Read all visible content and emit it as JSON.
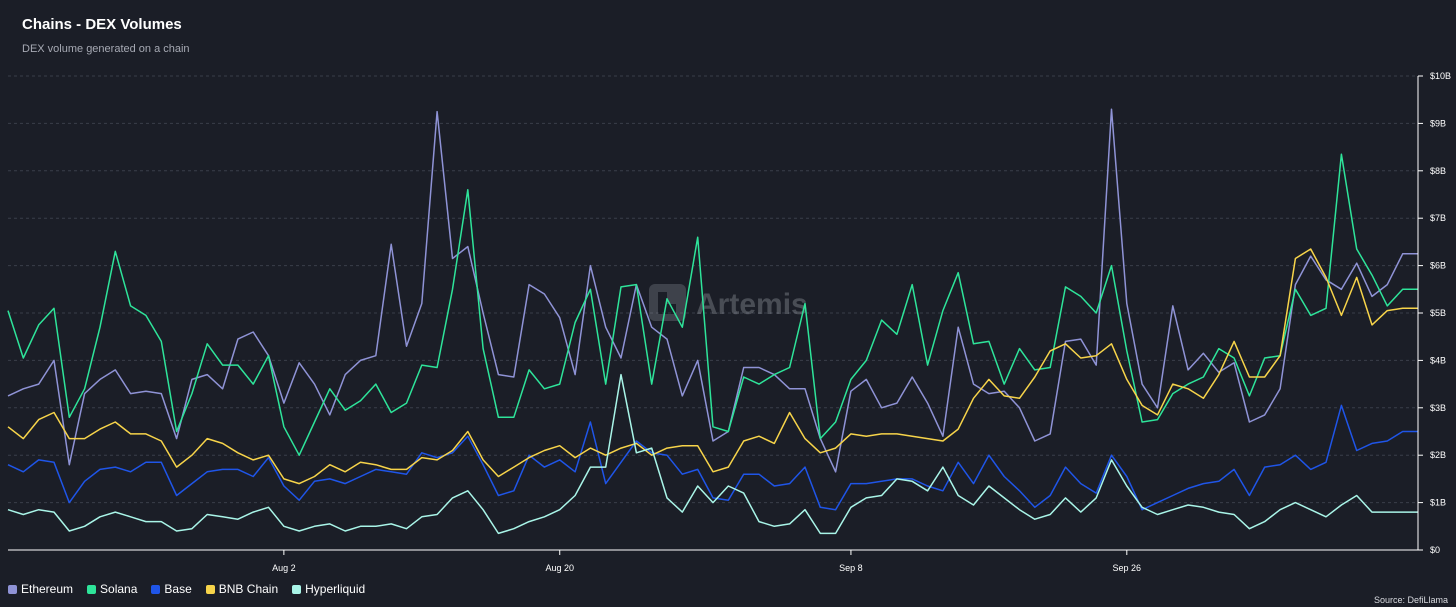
{
  "header": {
    "title": "Chains - DEX Volumes",
    "subtitle": "DEX volume generated on a chain"
  },
  "watermark": {
    "text": "Artemis"
  },
  "source": "Source: DefiLlama",
  "colors": {
    "Ethereum": "#8f93d6",
    "Solana": "#2ee49a",
    "Base": "#1f55e8",
    "BNB Chain": "#f7d44a",
    "Hyperliquid": "#a9f5e8",
    "grid": "#3a3e4a",
    "axis": "#ffffff"
  },
  "chart_data": {
    "type": "line",
    "title": "Chains - DEX Volumes",
    "subtitle": "DEX volume generated on a chain",
    "xlabel": "",
    "ylabel": "",
    "ylim": [
      0,
      10
    ],
    "y_unit": "B USD",
    "y_ticks": [
      0,
      1,
      2,
      3,
      4,
      5,
      6,
      7,
      8,
      9,
      10
    ],
    "y_tick_labels": [
      "$0",
      "$1B",
      "$2B",
      "$3B",
      "$4B",
      "$5B",
      "$6B",
      "$7B",
      "$8B",
      "$9B",
      "$10B"
    ],
    "x_start_date": "Jul 15",
    "x_ticks": [
      {
        "label": "Aug 2",
        "index": 18
      },
      {
        "label": "Aug 20",
        "index": 36
      },
      {
        "label": "Sep 8",
        "index": 55
      },
      {
        "label": "Sep 26",
        "index": 73
      }
    ],
    "legend_position": "bottom-left",
    "series": [
      {
        "name": "Ethereum",
        "values": [
          3.25,
          3.4,
          3.5,
          4.0,
          1.8,
          3.3,
          3.6,
          3.8,
          3.3,
          3.35,
          3.3,
          2.35,
          3.6,
          3.7,
          3.4,
          4.45,
          4.6,
          4.1,
          3.1,
          3.95,
          3.5,
          2.85,
          3.7,
          4.0,
          4.1,
          6.45,
          4.3,
          5.2,
          9.25,
          6.15,
          6.4,
          5.0,
          3.7,
          3.65,
          5.6,
          5.4,
          4.9,
          3.7,
          6.0,
          4.7,
          4.05,
          5.6,
          4.7,
          4.45,
          3.25,
          4.0,
          2.3,
          2.5,
          3.85,
          3.85,
          3.7,
          3.4,
          3.4,
          2.35,
          1.65,
          3.35,
          3.6,
          3.0,
          3.1,
          3.65,
          3.1,
          2.4,
          4.7,
          3.5,
          3.3,
          3.35,
          3.0,
          2.3,
          2.45,
          4.4,
          4.45,
          3.9,
          9.3,
          5.2,
          3.5,
          3.0,
          5.15,
          3.8,
          4.15,
          3.75,
          3.95,
          2.7,
          2.85,
          3.4,
          5.6,
          6.2,
          5.7,
          5.5,
          6.05,
          5.35,
          5.6,
          6.25,
          6.25
        ]
      },
      {
        "name": "Solana",
        "values": [
          5.05,
          4.05,
          4.75,
          5.1,
          2.8,
          3.4,
          4.7,
          6.3,
          5.15,
          4.95,
          4.4,
          2.5,
          3.3,
          4.35,
          3.9,
          3.9,
          3.5,
          4.1,
          2.6,
          2.0,
          2.7,
          3.4,
          2.95,
          3.15,
          3.5,
          2.9,
          3.1,
          3.9,
          3.85,
          5.5,
          7.6,
          4.25,
          2.8,
          2.8,
          3.8,
          3.4,
          3.5,
          4.8,
          5.5,
          3.5,
          5.55,
          5.6,
          3.5,
          5.3,
          4.7,
          6.6,
          2.6,
          2.5,
          3.65,
          3.5,
          3.7,
          3.85,
          5.2,
          2.35,
          2.7,
          3.6,
          4.0,
          4.85,
          4.55,
          5.6,
          3.9,
          5.05,
          5.85,
          4.35,
          4.4,
          3.5,
          4.25,
          3.8,
          3.85,
          5.55,
          5.35,
          5.0,
          6.0,
          4.2,
          2.7,
          2.75,
          3.3,
          3.5,
          3.65,
          4.25,
          4.05,
          3.25,
          4.05,
          4.1,
          5.5,
          4.95,
          5.1,
          8.35,
          6.35,
          5.8,
          5.15,
          5.5,
          5.5
        ]
      },
      {
        "name": "Base",
        "values": [
          1.8,
          1.65,
          1.9,
          1.85,
          1.0,
          1.45,
          1.7,
          1.75,
          1.65,
          1.85,
          1.85,
          1.15,
          1.4,
          1.65,
          1.7,
          1.7,
          1.55,
          1.95,
          1.35,
          1.05,
          1.45,
          1.5,
          1.4,
          1.55,
          1.7,
          1.65,
          1.6,
          2.05,
          1.95,
          2.05,
          2.4,
          1.8,
          1.15,
          1.25,
          2.0,
          1.75,
          1.9,
          1.65,
          2.7,
          1.4,
          1.85,
          2.3,
          2.05,
          2.0,
          1.6,
          1.7,
          1.1,
          1.05,
          1.6,
          1.6,
          1.35,
          1.4,
          1.75,
          0.9,
          0.85,
          1.4,
          1.4,
          1.45,
          1.5,
          1.5,
          1.35,
          1.25,
          1.85,
          1.4,
          2.0,
          1.55,
          1.25,
          0.9,
          1.15,
          1.75,
          1.4,
          1.2,
          2.0,
          1.55,
          0.85,
          1.0,
          1.15,
          1.3,
          1.4,
          1.45,
          1.7,
          1.15,
          1.75,
          1.8,
          2.0,
          1.7,
          1.85,
          3.05,
          2.1,
          2.25,
          2.3,
          2.5,
          2.5
        ]
      },
      {
        "name": "BNB Chain",
        "values": [
          2.6,
          2.35,
          2.75,
          2.9,
          2.35,
          2.35,
          2.55,
          2.7,
          2.45,
          2.45,
          2.3,
          1.75,
          2.0,
          2.35,
          2.25,
          2.05,
          1.9,
          2.0,
          1.5,
          1.4,
          1.55,
          1.8,
          1.65,
          1.85,
          1.8,
          1.7,
          1.7,
          1.95,
          1.9,
          2.1,
          2.5,
          1.9,
          1.55,
          1.75,
          1.95,
          2.1,
          2.2,
          1.95,
          2.15,
          2.0,
          2.15,
          2.25,
          2.0,
          2.15,
          2.2,
          2.2,
          1.65,
          1.75,
          2.3,
          2.4,
          2.25,
          2.9,
          2.35,
          2.05,
          2.15,
          2.45,
          2.4,
          2.45,
          2.45,
          2.4,
          2.35,
          2.3,
          2.55,
          3.2,
          3.6,
          3.25,
          3.2,
          3.65,
          4.2,
          4.35,
          4.05,
          4.1,
          4.35,
          3.6,
          3.05,
          2.85,
          3.5,
          3.4,
          3.2,
          3.7,
          4.4,
          3.65,
          3.65,
          4.1,
          6.15,
          6.35,
          5.75,
          4.95,
          5.75,
          4.75,
          5.05,
          5.1,
          5.1
        ]
      },
      {
        "name": "Hyperliquid",
        "values": [
          0.85,
          0.75,
          0.85,
          0.8,
          0.4,
          0.5,
          0.7,
          0.8,
          0.7,
          0.6,
          0.6,
          0.4,
          0.45,
          0.75,
          0.7,
          0.65,
          0.8,
          0.9,
          0.5,
          0.4,
          0.5,
          0.55,
          0.4,
          0.5,
          0.5,
          0.55,
          0.45,
          0.7,
          0.75,
          1.1,
          1.25,
          0.85,
          0.35,
          0.45,
          0.6,
          0.7,
          0.85,
          1.15,
          1.75,
          1.75,
          3.7,
          2.05,
          2.15,
          1.1,
          0.8,
          1.35,
          1.0,
          1.35,
          1.2,
          0.6,
          0.5,
          0.55,
          0.85,
          0.35,
          0.35,
          0.9,
          1.1,
          1.15,
          1.5,
          1.45,
          1.25,
          1.75,
          1.15,
          0.95,
          1.35,
          1.1,
          0.85,
          0.65,
          0.75,
          1.1,
          0.8,
          1.1,
          1.9,
          1.35,
          0.9,
          0.75,
          0.85,
          0.95,
          0.9,
          0.8,
          0.75,
          0.45,
          0.6,
          0.85,
          1.0,
          0.85,
          0.7,
          0.95,
          1.15,
          0.8,
          0.8,
          0.8,
          0.8
        ]
      }
    ]
  }
}
